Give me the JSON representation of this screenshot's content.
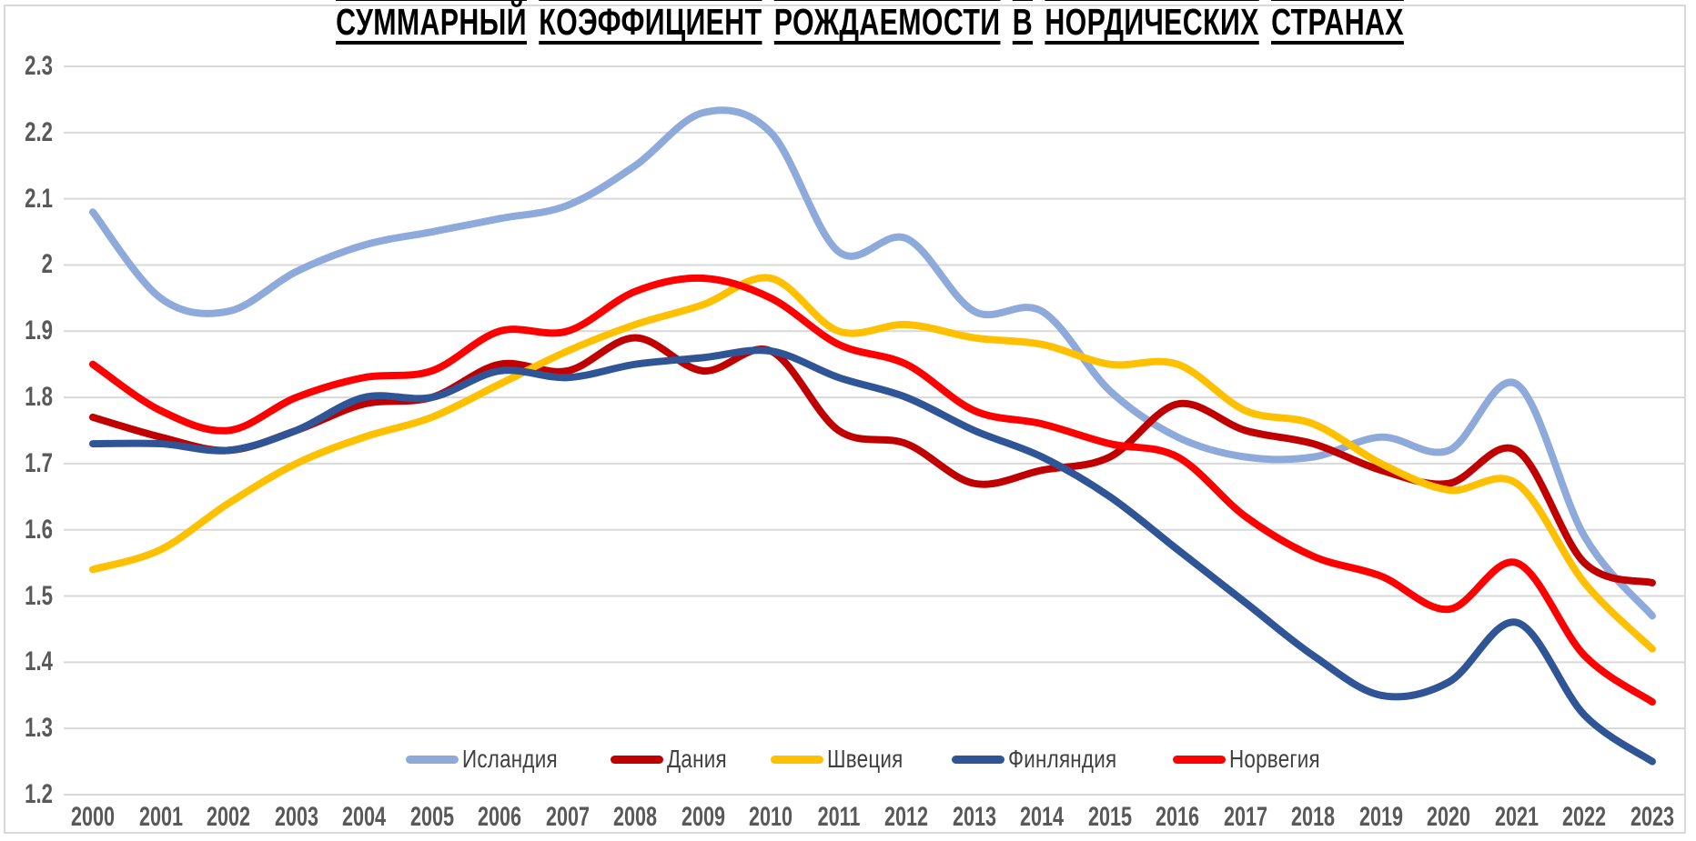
{
  "title": "СУММАРНЫЙ КОЭФФИЦИЕНТ РОЖДАЕМОСТИ В НОРДИЧЕСКИХ СТРАНАХ",
  "colors": {
    "gridline": "#D9D9D9",
    "frame": "#D9D9D9",
    "axis_text": "#595959",
    "legend_text": "#404040",
    "title_text": "#000000"
  },
  "chart_data": {
    "type": "line",
    "title": "СУММАРНЫЙ КОЭФФИЦИЕНТ РОЖДАЕМОСТИ В НОРДИЧЕСКИХ СТРАНАХ",
    "smooth": true,
    "grid": "horizontal",
    "legend_position": "bottom-center",
    "xlabel": "",
    "ylabel": "",
    "ylim": [
      1.2,
      2.3
    ],
    "ytick_step": 0.1,
    "y_tick_labels": [
      "2.3",
      "2.2",
      "2.1",
      "2",
      "1.9",
      "1.8",
      "1.7",
      "1.6",
      "1.5",
      "1.4",
      "1.3",
      "1.2"
    ],
    "x": [
      2000,
      2001,
      2002,
      2003,
      2004,
      2005,
      2006,
      2007,
      2008,
      2009,
      2010,
      2011,
      2012,
      2013,
      2014,
      2015,
      2016,
      2017,
      2018,
      2019,
      2020,
      2021,
      2022,
      2023
    ],
    "series": [
      {
        "name": "Исландия",
        "slug": "iceland",
        "color": "#8EAADB",
        "values": [
          2.08,
          1.95,
          1.93,
          1.99,
          2.03,
          2.05,
          2.07,
          2.09,
          2.15,
          2.23,
          2.2,
          2.02,
          2.04,
          1.93,
          1.93,
          1.81,
          1.74,
          1.71,
          1.71,
          1.74,
          1.72,
          1.82,
          1.59,
          1.47
        ]
      },
      {
        "name": "Дания",
        "slug": "denmark",
        "color": "#C00000",
        "values": [
          1.77,
          1.74,
          1.72,
          1.75,
          1.79,
          1.8,
          1.85,
          1.84,
          1.89,
          1.84,
          1.87,
          1.75,
          1.73,
          1.67,
          1.69,
          1.71,
          1.79,
          1.75,
          1.73,
          1.69,
          1.67,
          1.72,
          1.55,
          1.52
        ]
      },
      {
        "name": "Швеция",
        "slug": "sweden",
        "color": "#FFC000",
        "values": [
          1.54,
          1.57,
          1.64,
          1.7,
          1.74,
          1.77,
          1.82,
          1.87,
          1.91,
          1.94,
          1.98,
          1.9,
          1.91,
          1.89,
          1.88,
          1.85,
          1.85,
          1.78,
          1.76,
          1.7,
          1.66,
          1.67,
          1.52,
          1.42
        ]
      },
      {
        "name": "Финляндия",
        "slug": "finland",
        "color": "#2F5597",
        "values": [
          1.73,
          1.73,
          1.72,
          1.75,
          1.8,
          1.8,
          1.84,
          1.83,
          1.85,
          1.86,
          1.87,
          1.83,
          1.8,
          1.75,
          1.71,
          1.65,
          1.57,
          1.49,
          1.41,
          1.35,
          1.37,
          1.46,
          1.32,
          1.25
        ]
      },
      {
        "name": "Норвегия",
        "slug": "norway",
        "color": "#FF0000",
        "values": [
          1.85,
          1.78,
          1.75,
          1.8,
          1.83,
          1.84,
          1.9,
          1.9,
          1.96,
          1.98,
          1.95,
          1.88,
          1.85,
          1.78,
          1.76,
          1.73,
          1.71,
          1.62,
          1.56,
          1.53,
          1.48,
          1.55,
          1.41,
          1.34
        ]
      }
    ]
  }
}
